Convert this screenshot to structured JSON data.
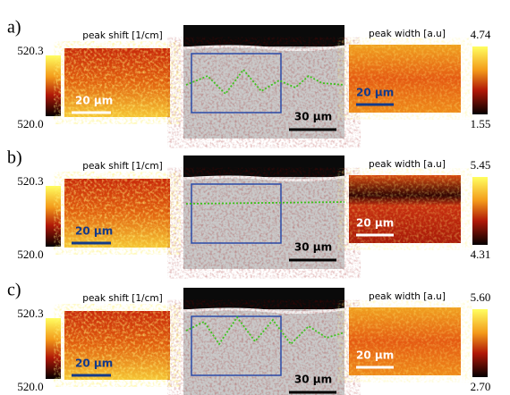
{
  "panels": [
    {
      "label": "a)",
      "left_title": "peak shift [1/cm]",
      "left_scale_max": "520.3",
      "left_scale_min": "520.0",
      "left_scalebar": "20 μm",
      "middle_scalebar": "30 μm",
      "right_title": "peak width [a.u]",
      "right_scale_max": "4.74",
      "right_scale_min": "1.55",
      "right_scalebar": "20 μm"
    },
    {
      "label": "b)",
      "left_title": "peak shift [1/cm]",
      "left_scale_max": "520.3",
      "left_scale_min": "520.0",
      "left_scalebar": "20 μm",
      "middle_scalebar": "30 μm",
      "right_title": "peak width [a.u]",
      "right_scale_max": "5.45",
      "right_scale_min": "4.31",
      "right_scalebar": "20 μm"
    },
    {
      "label": "c)",
      "left_title": "peak shift [1/cm]",
      "left_scale_max": "520.3",
      "left_scale_min": "520.0",
      "left_scalebar": "20 μm",
      "middle_scalebar": "30 μm",
      "right_title": "peak width [a.u]",
      "right_scale_max": "5.60",
      "right_scale_min": "2.70",
      "right_scalebar": "20 μm"
    }
  ]
}
